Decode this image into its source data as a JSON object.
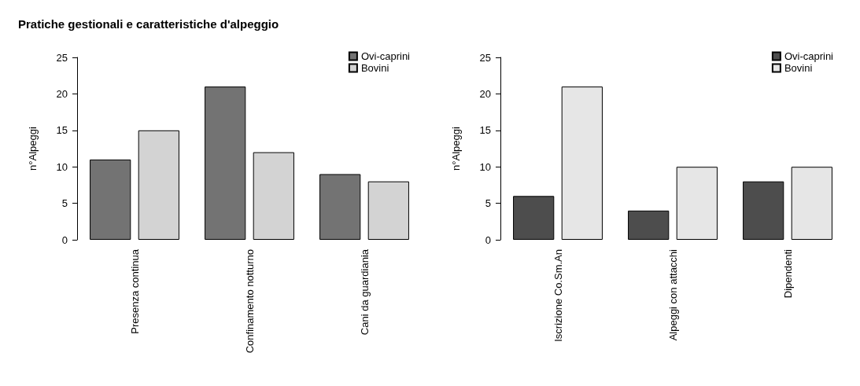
{
  "chart_data": [
    {
      "type": "bar",
      "title": "Pratiche gestionali e caratteristiche d'alpeggio",
      "ylabel": "n°Alpeggi",
      "categories": [
        "Presenza continua",
        "Confinamento notturno",
        "Cani da guardiania"
      ],
      "series": [
        {
          "name": "Ovi-caprini",
          "color": "#737373",
          "values": [
            11,
            21,
            9
          ]
        },
        {
          "name": "Bovini",
          "color": "#d3d3d3",
          "values": [
            15,
            12,
            8
          ]
        }
      ],
      "ylim": [
        0,
        25
      ],
      "yticks": [
        0,
        5,
        10,
        15,
        20,
        25
      ],
      "grid": false,
      "legend": "top right"
    },
    {
      "type": "bar",
      "ylabel": "n°Alpeggi",
      "categories": [
        "Iscrizione Co.Sm.An",
        "Alpeggi con attacchi",
        "Dipendenti"
      ],
      "series": [
        {
          "name": "Ovi-caprini",
          "color": "#4d4d4d",
          "values": [
            6,
            4,
            8
          ]
        },
        {
          "name": "Bovini",
          "color": "#e6e6e6",
          "values": [
            21,
            10,
            10
          ]
        }
      ],
      "ylim": [
        0,
        25
      ],
      "yticks": [
        0,
        5,
        10,
        15,
        20,
        25
      ],
      "grid": false,
      "legend": "top right"
    }
  ]
}
